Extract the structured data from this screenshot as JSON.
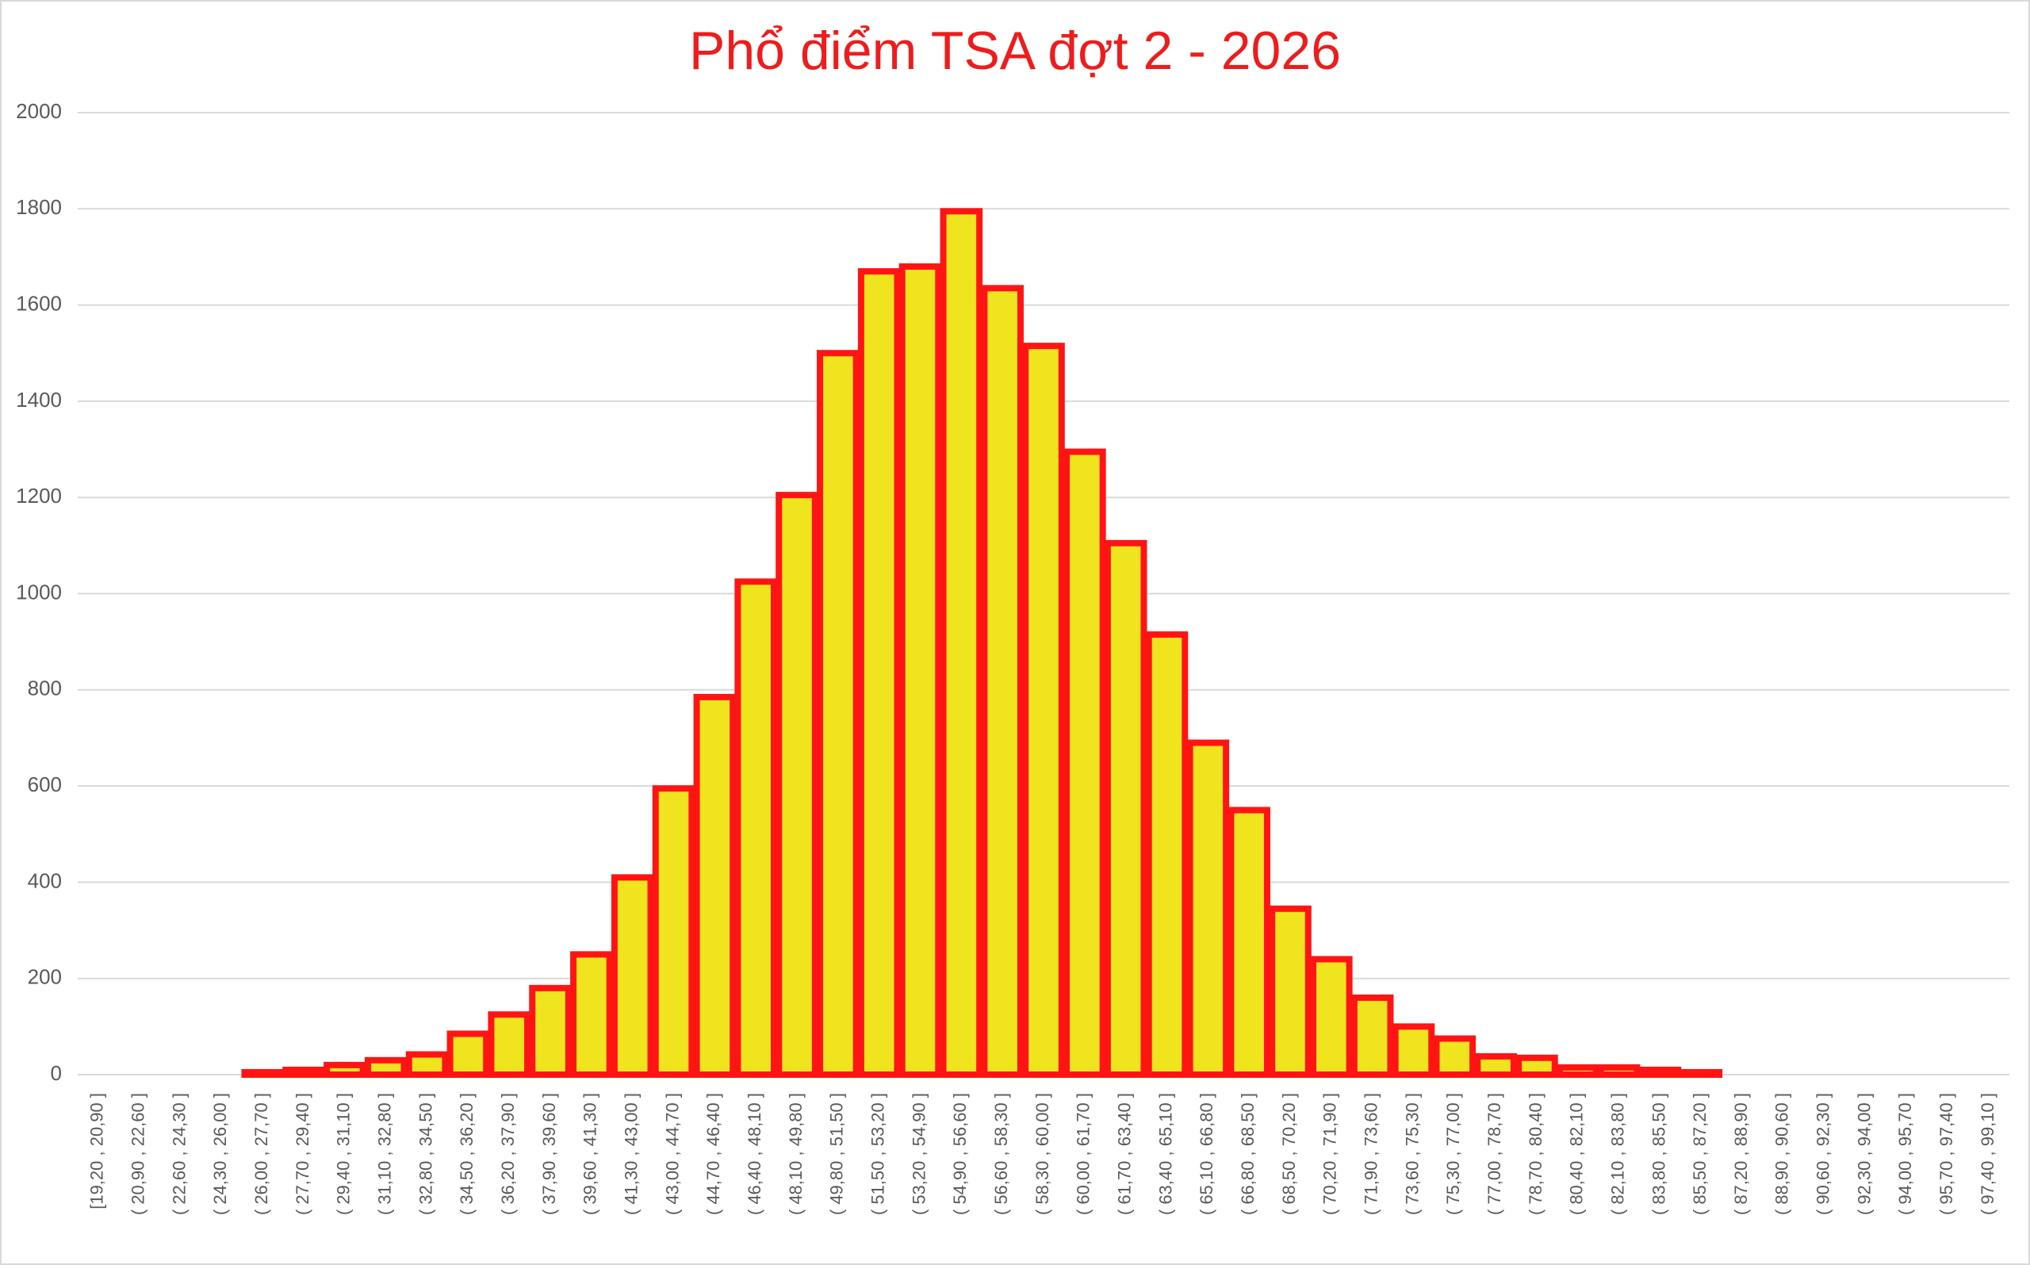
{
  "chart_data": {
    "type": "bar",
    "title": "Phổ điểm TSA đợt 2 - 2026",
    "categories": [
      "[19,20 , 20,90 ]",
      "( 20,90 , 22,60 ]",
      "( 22,60 , 24,30 ]",
      "( 24,30 , 26,00 ]",
      "( 26,00 , 27,70 ]",
      "( 27,70 , 29,40 ]",
      "( 29,40 , 31,10 ]",
      "( 31,10 , 32,80 ]",
      "( 32,80 , 34,50 ]",
      "( 34,50 , 36,20 ]",
      "( 36,20 , 37,90 ]",
      "( 37,90 , 39,60 ]",
      "( 39,60 , 41,30 ]",
      "( 41,30 , 43,00 ]",
      "( 43,00 , 44,70 ]",
      "( 44,70 , 46,40 ]",
      "( 46,40 , 48,10 ]",
      "( 48,10 , 49,80 ]",
      "( 49,80 , 51,50 ]",
      "( 51,50 , 53,20 ]",
      "( 53,20 , 54,90 ]",
      "( 54,90 , 56,60 ]",
      "( 56,60 , 58,30 ]",
      "( 58,30 , 60,00 ]",
      "( 60,00 , 61,70 ]",
      "( 61,70 , 63,40 ]",
      "( 63,40 , 65,10 ]",
      "( 65,10 , 66,80 ]",
      "( 66,80 , 68,50 ]",
      "( 68,50 , 70,20 ]",
      "( 70,20 , 71,90 ]",
      "( 71,90 , 73,60 ]",
      "( 73,60 , 75,30 ]",
      "( 75,30 , 77,00 ]",
      "( 77,00 , 78,70 ]",
      "( 78,70 , 80,40 ]",
      "( 80,40 , 82,10 ]",
      "( 82,10 , 83,80 ]",
      "( 83,80 , 85,50 ]",
      "( 85,50 , 87,20 ]",
      "( 87,20 , 88,90 ]",
      "( 88,90 , 90,60 ]",
      "( 90,60 , 92,30 ]",
      "( 92,30 , 94,00 ]",
      "( 94,00 , 95,70 ]",
      "( 95,70 , 97,40 ]",
      "( 97,40 , 99,10 ]"
    ],
    "values": [
      0,
      0,
      0,
      0,
      5,
      10,
      20,
      30,
      42,
      85,
      125,
      180,
      250,
      410,
      595,
      785,
      1025,
      1205,
      1500,
      1670,
      1680,
      1795,
      1635,
      1515,
      1295,
      1105,
      915,
      690,
      550,
      345,
      240,
      160,
      100,
      75,
      38,
      35,
      15,
      15,
      10,
      5,
      0,
      0,
      0,
      0,
      0,
      0,
      0
    ],
    "color": "#f0e41f",
    "edge_color": "#ff1414",
    "ylim": [
      0,
      2000
    ],
    "yticks": [
      0,
      200,
      400,
      600,
      800,
      1000,
      1200,
      1400,
      1600,
      1800,
      2000
    ],
    "grid": true
  }
}
